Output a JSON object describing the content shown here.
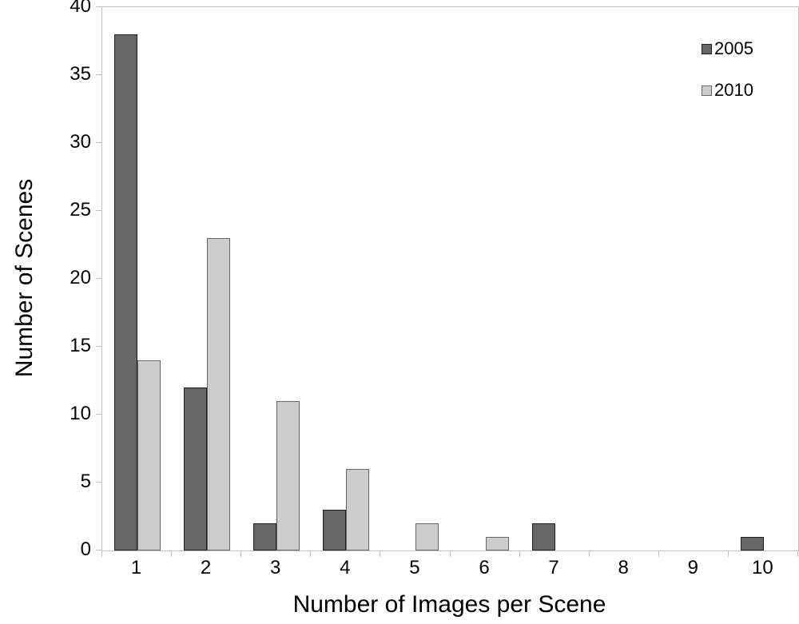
{
  "chart_data": {
    "type": "bar",
    "title": "",
    "xlabel": "Number of Images per Scene",
    "ylabel": "Number of Scenes",
    "categories": [
      "1",
      "2",
      "3",
      "4",
      "5",
      "6",
      "7",
      "8",
      "9",
      "10"
    ],
    "series": [
      {
        "name": "2005",
        "values": [
          38,
          12,
          2,
          3,
          0,
          0,
          2,
          0,
          0,
          1
        ],
        "fill": "#666666",
        "border": "#1f1f1f"
      },
      {
        "name": "2010",
        "values": [
          14,
          23,
          11,
          6,
          2,
          1,
          0,
          0,
          0,
          0
        ],
        "fill": "#cccccc",
        "border": "#666666"
      }
    ],
    "ylim": [
      0,
      40
    ],
    "yticks": [
      0,
      5,
      10,
      15,
      20,
      25,
      30,
      35,
      40
    ],
    "grid": false,
    "legend_position": "top-right",
    "axis_line_color": "#bfbfbf",
    "background_color": "#ffffff"
  }
}
